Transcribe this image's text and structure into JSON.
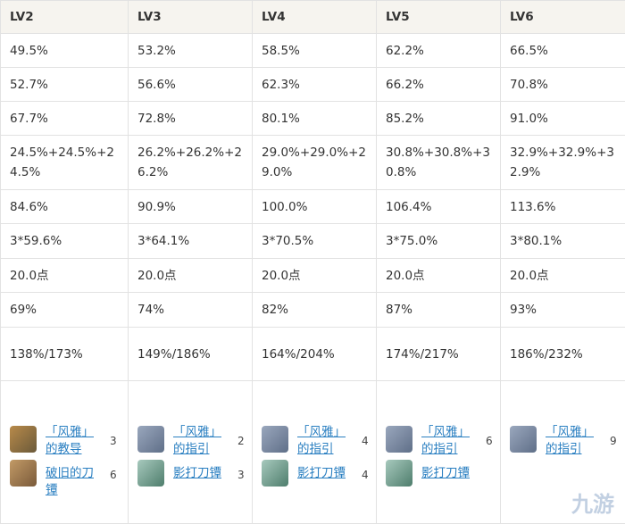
{
  "table": {
    "header": [
      "LV2",
      "LV3",
      "LV4",
      "LV5",
      "LV6"
    ],
    "rows": [
      [
        "49.5%",
        "53.2%",
        "58.5%",
        "62.2%",
        "66.5%"
      ],
      [
        "52.7%",
        "56.6%",
        "62.3%",
        "66.2%",
        "70.8%"
      ],
      [
        "67.7%",
        "72.8%",
        "80.1%",
        "85.2%",
        "91.0%"
      ],
      [
        "24.5%+24.5%+24.5%",
        "26.2%+26.2%+26.2%",
        "29.0%+29.0%+29.0%",
        "30.8%+30.8%+30.8%",
        "32.9%+32.9%+32.9%"
      ],
      [
        "84.6%",
        "90.9%",
        "100.0%",
        "106.4%",
        "113.6%"
      ],
      [
        "3*59.6%",
        "3*64.1%",
        "3*70.5%",
        "3*75.0%",
        "3*80.1%"
      ],
      [
        "20.0点",
        "20.0点",
        "20.0点",
        "20.0点",
        "20.0点"
      ],
      [
        "69%",
        "74%",
        "82%",
        "87%",
        "93%"
      ],
      [
        "138%/173%",
        "149%/186%",
        "164%/204%",
        "174%/217%",
        "186%/232%"
      ]
    ],
    "materials": [
      [
        {
          "name": "「风雅」的教导",
          "count": 3
        },
        {
          "name": "破旧的刀镡",
          "count": 6
        }
      ],
      [
        {
          "name": "「风雅」的指引",
          "count": 2
        },
        {
          "name": "影打刀镡",
          "count": 3
        }
      ],
      [
        {
          "name": "「风雅」的指引",
          "count": 4
        },
        {
          "name": "影打刀镡",
          "count": 4
        }
      ],
      [
        {
          "name": "「风雅」的指引",
          "count": 6
        },
        {
          "name": "影打刀镡"
        }
      ],
      [
        {
          "name": "「风雅」的指引",
          "count": 9
        }
      ]
    ]
  },
  "watermark": "九游"
}
